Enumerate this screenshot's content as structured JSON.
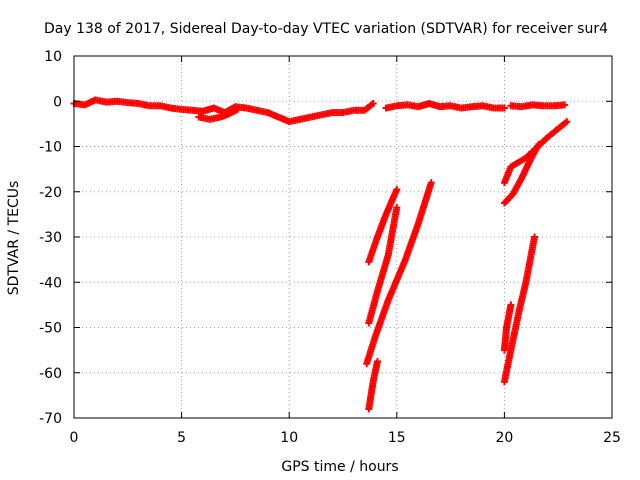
{
  "chart_data": {
    "type": "scatter",
    "title": "Day 138 of 2017, Sidereal Day-to-day VTEC variation (SDTVAR) for receiver sur4",
    "xlabel": "GPS time / hours",
    "ylabel": "SDTVAR / TECUs",
    "xlim": [
      0,
      25
    ],
    "ylim": [
      -70,
      10
    ],
    "xticks": [
      0,
      5,
      10,
      15,
      20,
      25
    ],
    "yticks": [
      10,
      0,
      -10,
      -20,
      -30,
      -40,
      -50,
      -60,
      -70
    ],
    "grid": true,
    "marker": "plus",
    "color": "#ff0000",
    "series": [
      {
        "segments": [
          [
            [
              0.0,
              -0.5
            ],
            [
              0.5,
              -0.8
            ],
            [
              1.0,
              0.3
            ],
            [
              1.5,
              -0.2
            ],
            [
              2.0,
              0.0
            ],
            [
              2.5,
              -0.3
            ],
            [
              3.0,
              -0.5
            ],
            [
              3.5,
              -1.0
            ],
            [
              4.0,
              -1.0
            ],
            [
              4.5,
              -1.5
            ],
            [
              5.0,
              -1.8
            ],
            [
              5.5,
              -2.0
            ],
            [
              6.0,
              -2.2
            ],
            [
              6.5,
              -1.5
            ],
            [
              7.0,
              -2.5
            ],
            [
              7.5,
              -1.2
            ],
            [
              8.0,
              -1.5
            ],
            [
              8.5,
              -2.0
            ],
            [
              9.0,
              -2.5
            ],
            [
              9.5,
              -3.5
            ],
            [
              10.0,
              -4.5
            ],
            [
              10.5,
              -4.0
            ],
            [
              11.0,
              -3.5
            ],
            [
              11.5,
              -3.0
            ],
            [
              12.0,
              -2.5
            ],
            [
              12.5,
              -2.5
            ],
            [
              13.0,
              -2.0
            ],
            [
              13.5,
              -2.0
            ],
            [
              13.9,
              -0.5
            ]
          ],
          [
            [
              5.8,
              -3.5
            ],
            [
              6.3,
              -4.0
            ],
            [
              6.8,
              -3.5
            ],
            [
              7.2,
              -2.8
            ],
            [
              7.6,
              -1.8
            ]
          ],
          [
            [
              14.5,
              -1.5
            ],
            [
              15.0,
              -1.0
            ],
            [
              15.5,
              -0.8
            ],
            [
              16.0,
              -1.2
            ],
            [
              16.5,
              -0.5
            ],
            [
              17.0,
              -1.2
            ],
            [
              17.5,
              -1.0
            ],
            [
              18.0,
              -1.5
            ],
            [
              18.5,
              -1.2
            ],
            [
              19.0,
              -1.0
            ],
            [
              19.5,
              -1.5
            ],
            [
              20.0,
              -1.5
            ]
          ],
          [
            [
              20.3,
              -1.0
            ],
            [
              20.8,
              -1.2
            ],
            [
              21.3,
              -0.8
            ],
            [
              21.8,
              -1.0
            ],
            [
              22.3,
              -1.0
            ],
            [
              22.8,
              -0.8
            ]
          ],
          [
            [
              13.7,
              -35.5
            ],
            [
              14.1,
              -30.0
            ],
            [
              14.5,
              -25.0
            ],
            [
              15.0,
              -19.5
            ]
          ],
          [
            [
              13.7,
              -49.0
            ],
            [
              14.1,
              -42.0
            ],
            [
              14.6,
              -34.0
            ],
            [
              15.0,
              -23.5
            ]
          ],
          [
            [
              13.6,
              -58.0
            ],
            [
              14.0,
              -52.0
            ],
            [
              14.6,
              -44.0
            ],
            [
              15.4,
              -35.0
            ],
            [
              16.0,
              -27.0
            ],
            [
              16.6,
              -18.0
            ]
          ],
          [
            [
              13.7,
              -68.0
            ],
            [
              13.9,
              -62.0
            ],
            [
              14.1,
              -57.5
            ]
          ],
          [
            [
              20.0,
              -18.0
            ],
            [
              20.3,
              -14.5
            ],
            [
              21.0,
              -12.5
            ],
            [
              22.0,
              -8.0
            ],
            [
              22.9,
              -4.5
            ]
          ],
          [
            [
              20.0,
              -22.5
            ],
            [
              20.4,
              -20.5
            ],
            [
              20.8,
              -17.0
            ],
            [
              21.2,
              -13.0
            ],
            [
              21.6,
              -9.5
            ]
          ],
          [
            [
              20.0,
              -62.0
            ],
            [
              20.3,
              -55.0
            ],
            [
              20.7,
              -46.0
            ],
            [
              21.0,
              -40.0
            ],
            [
              21.4,
              -30.0
            ]
          ],
          [
            [
              20.0,
              -55.0
            ],
            [
              20.1,
              -50.0
            ],
            [
              20.3,
              -45.0
            ]
          ]
        ]
      }
    ]
  }
}
